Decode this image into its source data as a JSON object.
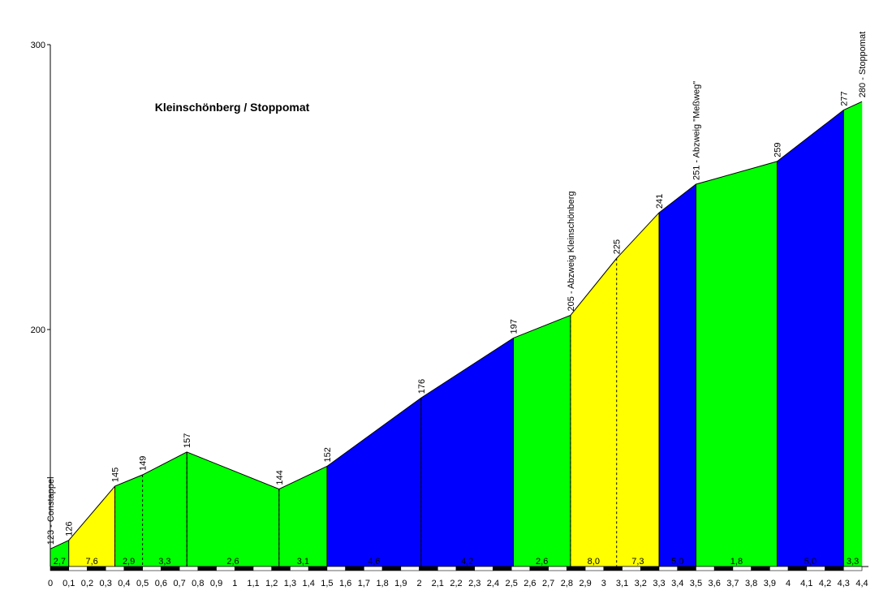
{
  "chart_data": {
    "type": "area",
    "title": "Kleinschönberg / Stoppomat",
    "xlabel": "",
    "ylabel": "",
    "xlim": [
      0,
      4.4
    ],
    "ylim": [
      118,
      300
    ],
    "y_tick_labels": [
      "200",
      "300"
    ],
    "y_tick_values": [
      200,
      300
    ],
    "x_tick_labels": [
      "0",
      "0,1",
      "0,2",
      "0,3",
      "0,4",
      "0,5",
      "0,6",
      "0,7",
      "0,8",
      "0,9",
      "1",
      "1,1",
      "1,2",
      "1,3",
      "1,4",
      "1,5",
      "1,6",
      "1,7",
      "1,8",
      "1,9",
      "2",
      "2,1",
      "2,2",
      "2,3",
      "2,4",
      "2,5",
      "2,6",
      "2,7",
      "2,8",
      "2,9",
      "3",
      "3,1",
      "3,2",
      "3,3",
      "3,4",
      "3,5",
      "3,6",
      "3,7",
      "3,8",
      "3,9",
      "4",
      "4,1",
      "4,2",
      "4,3",
      "4,4"
    ],
    "profile": {
      "x": [
        0,
        0.1,
        0.35,
        0.5,
        0.74,
        1.24,
        1.5,
        2.01,
        2.51,
        2.82,
        3.07,
        3.3,
        3.5,
        3.94,
        4.3,
        4.4
      ],
      "elevation": [
        123,
        126,
        145,
        149,
        157,
        144,
        152,
        176,
        197,
        205,
        225,
        241,
        251,
        259,
        277,
        280
      ]
    },
    "point_labels": [
      {
        "x": 0,
        "y": 123,
        "text": "123 - Constappel"
      },
      {
        "x": 0.1,
        "y": 126,
        "text": "126"
      },
      {
        "x": 0.35,
        "y": 145,
        "text": "145"
      },
      {
        "x": 0.5,
        "y": 149,
        "text": "149"
      },
      {
        "x": 0.74,
        "y": 157,
        "text": "157"
      },
      {
        "x": 1.24,
        "y": 144,
        "text": "144"
      },
      {
        "x": 1.5,
        "y": 152,
        "text": "152"
      },
      {
        "x": 2.01,
        "y": 176,
        "text": "176"
      },
      {
        "x": 2.51,
        "y": 197,
        "text": "197"
      },
      {
        "x": 2.82,
        "y": 205,
        "text": "205 - Abzweig Kleinschönberg"
      },
      {
        "x": 3.07,
        "y": 225,
        "text": "225"
      },
      {
        "x": 3.3,
        "y": 241,
        "text": "241"
      },
      {
        "x": 3.5,
        "y": 251,
        "text": "251 - Abzweig \"Meßweg\""
      },
      {
        "x": 3.94,
        "y": 259,
        "text": "259"
      },
      {
        "x": 4.3,
        "y": 277,
        "text": "277"
      },
      {
        "x": 4.4,
        "y": 280,
        "text": "280 - Stoppomat"
      }
    ],
    "segments": [
      {
        "x0": 0,
        "x1": 0.1,
        "gradient": "2,7",
        "color": "#00ff00"
      },
      {
        "x0": 0.1,
        "x1": 0.35,
        "gradient": "7,6",
        "color": "#ffff00"
      },
      {
        "x0": 0.35,
        "x1": 0.74,
        "gradients": [
          "2,9",
          "3,3"
        ],
        "color": "#00ff00"
      },
      {
        "x0": 0.74,
        "x1": 1.24,
        "gradient": "2,6",
        "color": "#00ff00"
      },
      {
        "x0": 1.24,
        "x1": 1.5,
        "gradient": "3,1",
        "color": "#00ff00"
      },
      {
        "x0": 1.5,
        "x1": 2.01,
        "gradient": "4,6",
        "color": "#0000ff"
      },
      {
        "x0": 2.01,
        "x1": 2.51,
        "gradient": "4,2",
        "color": "#0000ff"
      },
      {
        "x0": 2.51,
        "x1": 2.82,
        "gradient": "2,6",
        "color": "#00ff00"
      },
      {
        "x0": 2.82,
        "x1": 3.3,
        "gradients": [
          "8,0",
          "7,3"
        ],
        "color": "#ffff00"
      },
      {
        "x0": 3.3,
        "x1": 3.5,
        "gradient": "5,0",
        "color": "#0000ff"
      },
      {
        "x0": 3.5,
        "x1": 3.94,
        "gradient": "1,8",
        "color": "#00ff00"
      },
      {
        "x0": 3.94,
        "x1": 4.3,
        "gradient": "5,0",
        "color": "#0000ff"
      },
      {
        "x0": 4.3,
        "x1": 4.4,
        "gradient": "3,3",
        "color": "#00ff00"
      }
    ],
    "dashed_markers_x": [
      0.35,
      0.5,
      0.74,
      1.24,
      2.01,
      2.82,
      3.07
    ],
    "grid": false,
    "legend": "none"
  }
}
